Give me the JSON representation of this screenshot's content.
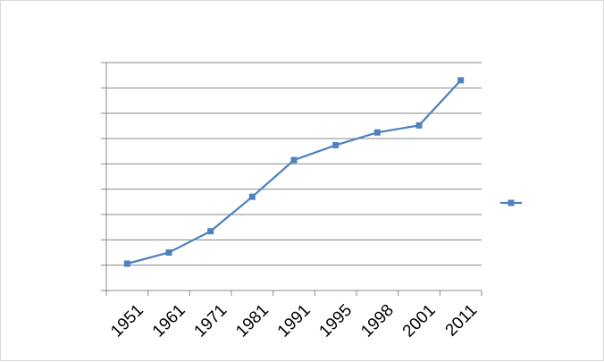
{
  "chart_data": {
    "type": "line",
    "title": "",
    "xlabel": "",
    "ylabel": "",
    "categories": [
      "1951",
      "1961",
      "1971",
      "1981",
      "1991",
      "1995",
      "1998",
      "2001",
      "2011"
    ],
    "series": [
      {
        "values": [
          1.06,
          1.5,
          2.34,
          3.7,
          5.15,
          5.74,
          6.24,
          6.52,
          8.3
        ]
      }
    ],
    "ylim": [
      0,
      9
    ],
    "grid": true,
    "legend": "right",
    "colors": {
      "line": "#4f81bd",
      "grid": "#898989",
      "axis": "#898989"
    }
  }
}
